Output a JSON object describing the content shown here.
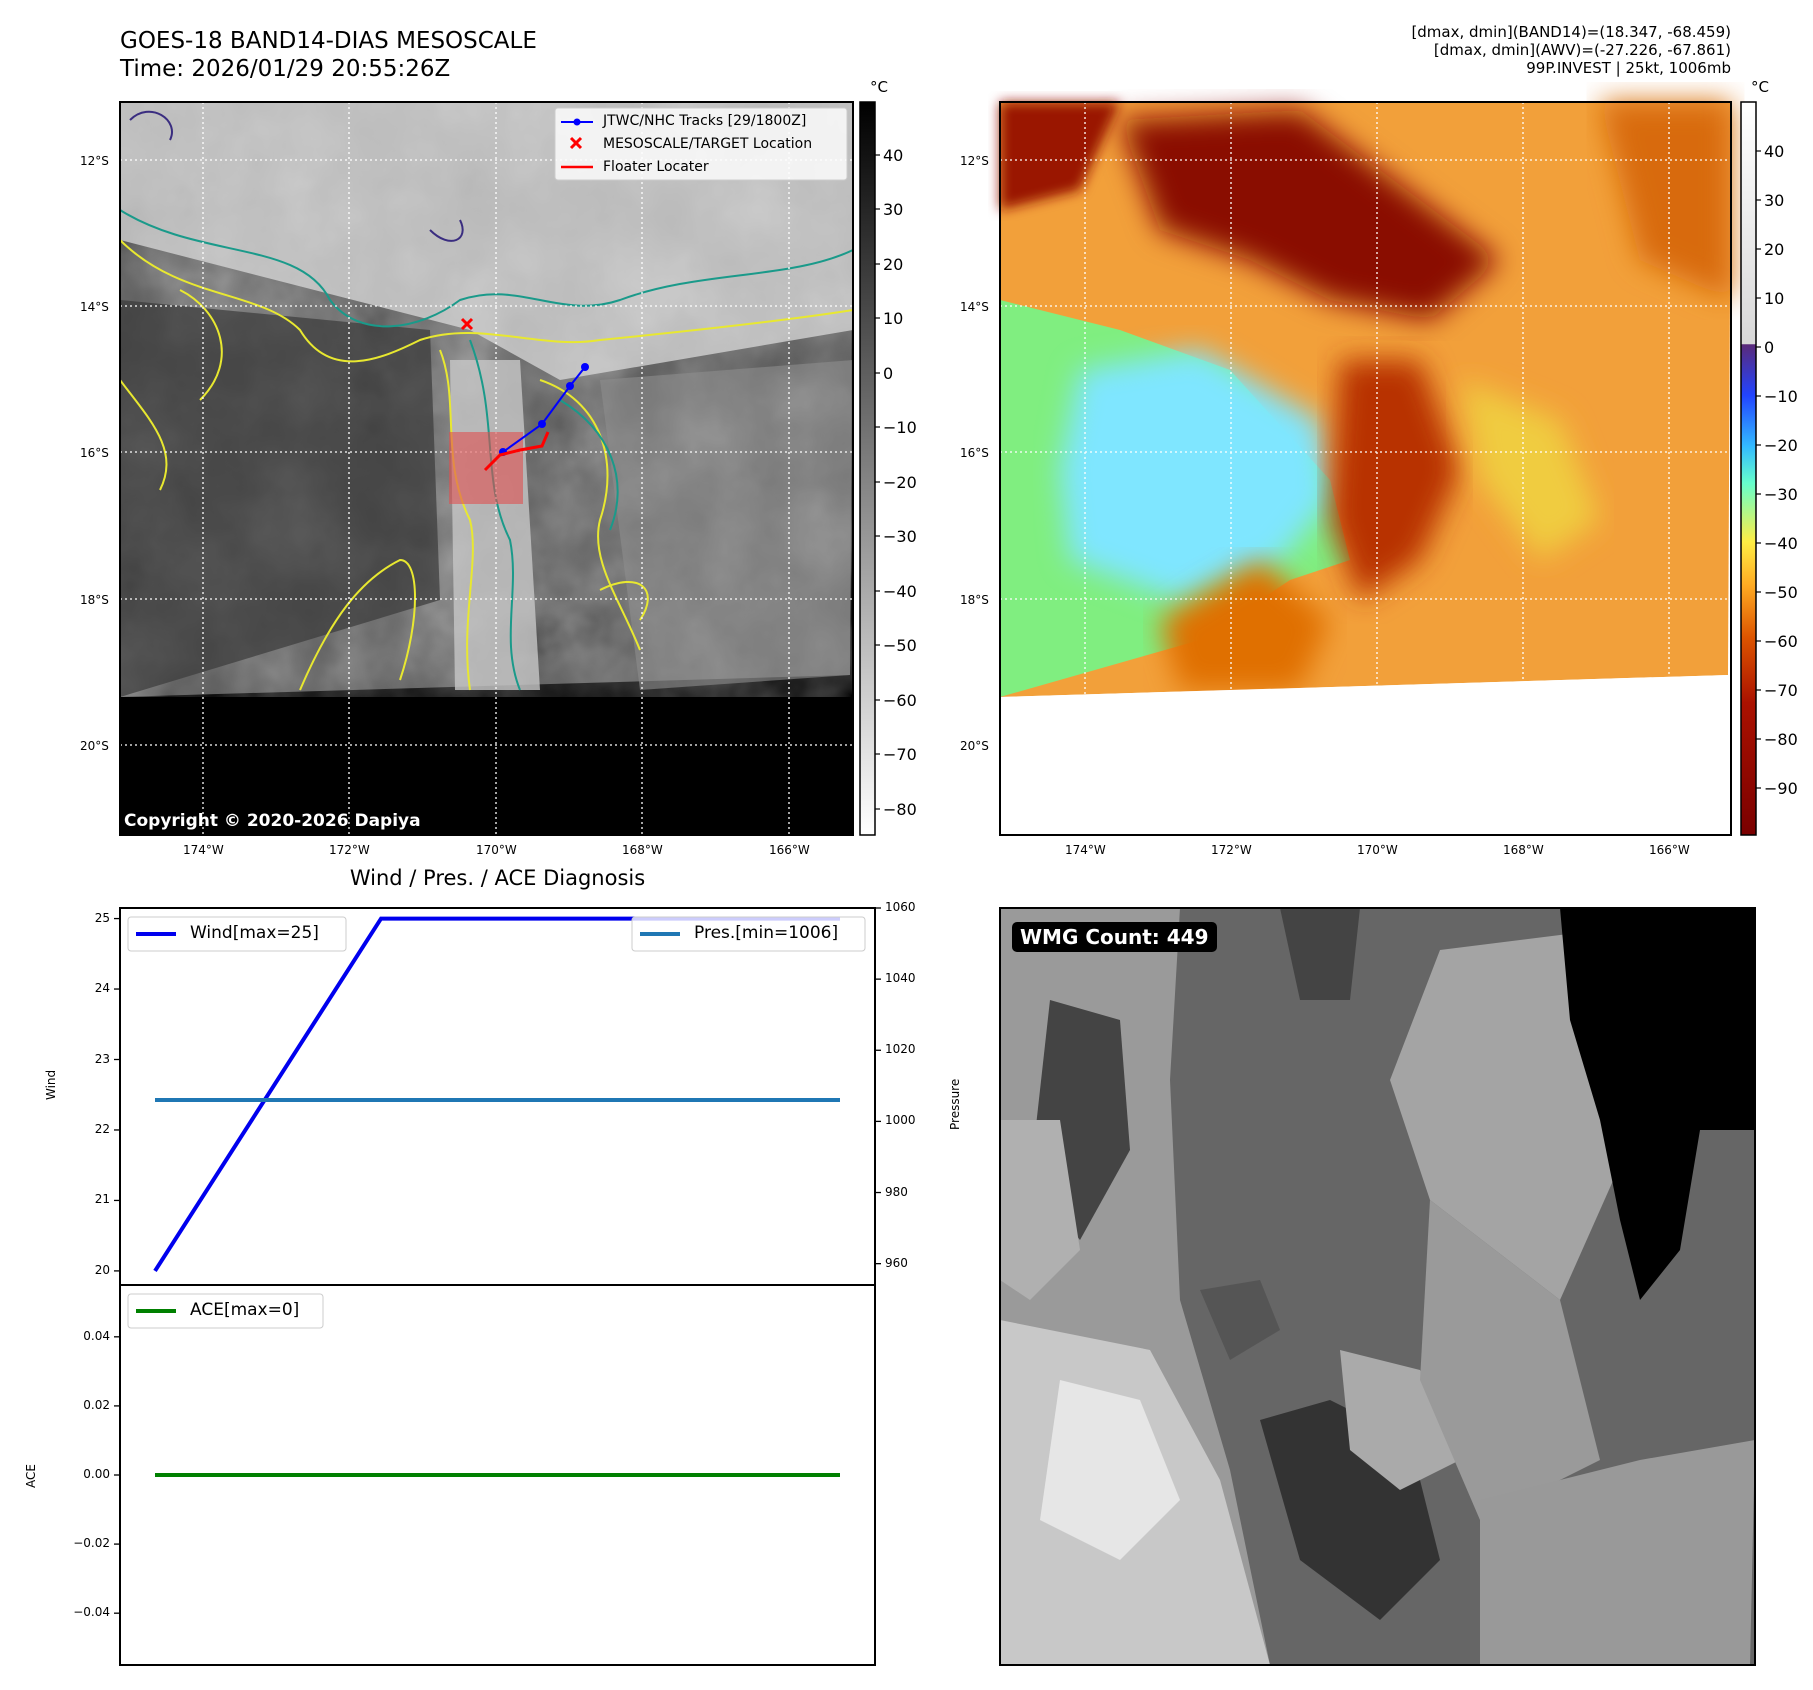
{
  "header": {
    "title_line1": "GOES-18 BAND14-DIAS MESOSCALE",
    "title_line2": "Time: 2026/01/29 20:55:26Z",
    "info_line1": "[dmax, dmin](BAND14)=(18.347, -68.459)",
    "info_line2": "[dmax, dmin](AWV)=(-27.226, -67.861)",
    "info_line3": "99P.INVEST | 25kt, 1006mb"
  },
  "map": {
    "lat_labels": [
      "12°S",
      "14°S",
      "16°S",
      "18°S",
      "20°S"
    ],
    "lon_labels": [
      "174°W",
      "172°W",
      "170°W",
      "168°W",
      "166°W"
    ],
    "copyright": "Copyright © 2020-2026 Dapiya",
    "legend": [
      "JTWC/NHC Tracks [29/1800Z]",
      "MESOSCALE/TARGET Location",
      "Floater Locater"
    ],
    "colors": {
      "track": "#0000ff",
      "target": "#ff0000",
      "floater": "#ff0000",
      "floater_box": "#e05050"
    }
  },
  "colorbar1": {
    "unit": "°C",
    "ticks": [
      "40",
      "30",
      "20",
      "10",
      "0",
      "−10",
      "−20",
      "−30",
      "−40",
      "−50",
      "−60",
      "−70",
      "−80"
    ]
  },
  "colorbar2": {
    "unit": "°C",
    "ticks": [
      "40",
      "30",
      "20",
      "10",
      "0",
      "−10",
      "−20",
      "−30",
      "−40",
      "−50",
      "−60",
      "−70",
      "−80",
      "−90"
    ]
  },
  "wmg_count": "WMG Count: 449",
  "chart_data": [
    {
      "type": "line",
      "title": "Wind / Pres. / ACE Diagnosis",
      "ylabel": "Wind",
      "ylabel2": "Pressure",
      "x": [
        0,
        1,
        2
      ],
      "ylim": [
        19.8,
        25.15
      ],
      "y2lim": [
        954,
        1060
      ],
      "series": [
        {
          "name": "Wind[max=25]",
          "axis": "left",
          "color": "#0000ee",
          "values": [
            20,
            25,
            25
          ]
        },
        {
          "name": "Pres.[min=1006]",
          "axis": "right",
          "color": "#1f77b4",
          "values": [
            1006,
            1006,
            1006
          ]
        }
      ],
      "yticks": [
        "25",
        "24",
        "23",
        "22",
        "21",
        "20"
      ],
      "y2ticks": [
        "1060",
        "1040",
        "1020",
        "1000",
        "980",
        "960"
      ]
    },
    {
      "type": "line",
      "ylabel": "ACE",
      "x": [
        0,
        1,
        2
      ],
      "ylim": [
        -0.055,
        0.055
      ],
      "series": [
        {
          "name": "ACE[max=0]",
          "axis": "left",
          "color": "#008000",
          "values": [
            0,
            0,
            0
          ]
        }
      ],
      "yticks": [
        "0.04",
        "0.02",
        "0.00",
        "−0.02",
        "−0.04"
      ]
    }
  ]
}
